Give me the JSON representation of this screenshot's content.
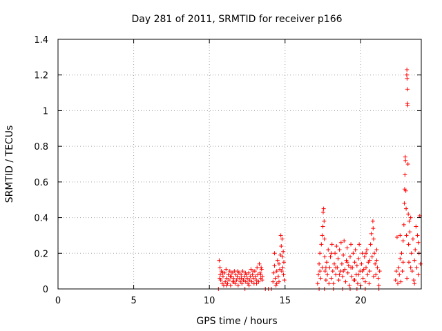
{
  "chart_data": {
    "type": "scatter",
    "title": "Day 281 of 2011, SRMTID for receiver p166",
    "xlabel": "GPS time / hours",
    "ylabel": "SRMTID / TECUs",
    "xlim": [
      0,
      24
    ],
    "ylim": [
      0,
      1.4
    ],
    "xticks": [
      0,
      5,
      10,
      15,
      20
    ],
    "xtick_labels": [
      "0",
      "5",
      "10",
      "15",
      "20"
    ],
    "yticks": [
      0,
      0.2,
      0.4,
      0.6,
      0.8,
      1,
      1.2,
      1.4
    ],
    "ytick_labels": [
      "0",
      "0.2",
      "0.4",
      "0.6",
      "0.8",
      "1",
      "1.2",
      "1.4"
    ],
    "grid": true,
    "marker": "+",
    "marker_color": "#ff0000",
    "series": [
      {
        "name": "SRMTID",
        "points": [
          [
            10.6,
            0.0
          ],
          [
            10.65,
            0.16
          ],
          [
            10.7,
            0.12
          ],
          [
            10.72,
            0.08
          ],
          [
            10.75,
            0.05
          ],
          [
            10.8,
            0.1
          ],
          [
            10.85,
            0.03
          ],
          [
            10.9,
            0.07
          ],
          [
            10.95,
            0.02
          ],
          [
            11.0,
            0.09
          ],
          [
            11.05,
            0.04
          ],
          [
            11.1,
            0.11
          ],
          [
            11.15,
            0.06
          ],
          [
            11.2,
            0.03
          ],
          [
            11.25,
            0.08
          ],
          [
            11.3,
            0.05
          ],
          [
            11.35,
            0.1
          ],
          [
            11.4,
            0.02
          ],
          [
            11.45,
            0.07
          ],
          [
            11.5,
            0.09
          ],
          [
            11.55,
            0.04
          ],
          [
            11.6,
            0.06
          ],
          [
            11.65,
            0.1
          ],
          [
            11.7,
            0.03
          ],
          [
            11.75,
            0.08
          ],
          [
            11.8,
            0.05
          ],
          [
            11.85,
            0.07
          ],
          [
            11.9,
            0.02
          ],
          [
            11.95,
            0.09
          ],
          [
            12.0,
            0.06
          ],
          [
            12.05,
            0.04
          ],
          [
            12.1,
            0.08
          ],
          [
            12.15,
            0.03
          ],
          [
            12.2,
            0.1
          ],
          [
            12.25,
            0.05
          ],
          [
            12.3,
            0.07
          ],
          [
            12.35,
            0.0
          ],
          [
            12.4,
            0.04
          ],
          [
            12.45,
            0.08
          ],
          [
            12.5,
            0.06
          ],
          [
            12.55,
            0.03
          ],
          [
            12.6,
            0.09
          ],
          [
            12.65,
            0.05
          ],
          [
            12.7,
            0.07
          ],
          [
            12.75,
            0.11
          ],
          [
            12.8,
            0.04
          ],
          [
            12.85,
            0.08
          ],
          [
            12.9,
            0.06
          ],
          [
            12.95,
            0.03
          ],
          [
            13.0,
            0.1
          ],
          [
            13.05,
            0.07
          ],
          [
            13.1,
            0.05
          ],
          [
            13.15,
            0.12
          ],
          [
            13.2,
            0.08
          ],
          [
            13.25,
            0.04
          ],
          [
            13.3,
            0.14
          ],
          [
            13.35,
            0.09
          ],
          [
            13.4,
            0.06
          ],
          [
            13.45,
            0.11
          ],
          [
            13.5,
            0.07
          ],
          [
            10.68,
            0.06
          ],
          [
            10.88,
            0.09
          ],
          [
            11.12,
            0.02
          ],
          [
            11.38,
            0.07
          ],
          [
            11.62,
            0.04
          ],
          [
            11.88,
            0.1
          ],
          [
            12.12,
            0.06
          ],
          [
            12.38,
            0.09
          ],
          [
            12.62,
            0.02
          ],
          [
            12.88,
            0.1
          ],
          [
            13.12,
            0.03
          ],
          [
            13.38,
            0.08
          ],
          [
            13.42,
            0.12
          ],
          [
            13.48,
            0.05
          ],
          [
            13.7,
            0.0
          ],
          [
            13.9,
            0.0
          ],
          [
            14.1,
            0.0
          ],
          [
            14.2,
            0.04
          ],
          [
            14.25,
            0.09
          ],
          [
            14.3,
            0.13
          ],
          [
            14.35,
            0.06
          ],
          [
            14.4,
            0.02
          ],
          [
            14.45,
            0.1
          ],
          [
            14.5,
            0.16
          ],
          [
            14.55,
            0.07
          ],
          [
            14.6,
            0.04
          ],
          [
            14.65,
            0.11
          ],
          [
            14.7,
            0.19
          ],
          [
            14.72,
            0.3
          ],
          [
            14.75,
            0.24
          ],
          [
            14.8,
            0.28
          ],
          [
            14.82,
            0.18
          ],
          [
            14.85,
            0.12
          ],
          [
            14.88,
            0.21
          ],
          [
            14.9,
            0.08
          ],
          [
            14.92,
            0.15
          ],
          [
            14.95,
            0.05
          ],
          [
            14.3,
            0.2
          ],
          [
            14.45,
            0.03
          ],
          [
            14.6,
            0.14
          ],
          [
            14.78,
            0.1
          ],
          [
            17.15,
            0.03
          ],
          [
            17.2,
            0.08
          ],
          [
            17.25,
            0.14
          ],
          [
            17.3,
            0.2
          ],
          [
            17.35,
            0.06
          ],
          [
            17.4,
            0.25
          ],
          [
            17.45,
            0.12
          ],
          [
            17.5,
            0.35
          ],
          [
            17.52,
            0.43
          ],
          [
            17.55,
            0.45
          ],
          [
            17.58,
            0.38
          ],
          [
            17.6,
            0.28
          ],
          [
            17.62,
            0.18
          ],
          [
            17.65,
            0.1
          ],
          [
            17.7,
            0.05
          ],
          [
            17.75,
            0.15
          ],
          [
            17.8,
            0.08
          ],
          [
            17.85,
            0.22
          ],
          [
            17.9,
            0.03
          ],
          [
            17.95,
            0.12
          ],
          [
            18.0,
            0.18
          ],
          [
            18.05,
            0.06
          ],
          [
            18.1,
            0.25
          ],
          [
            18.15,
            0.1
          ],
          [
            18.2,
            0.03
          ],
          [
            18.25,
            0.14
          ],
          [
            18.3,
            0.2
          ],
          [
            18.35,
            0.08
          ],
          [
            18.4,
            0.24
          ],
          [
            18.45,
            0.12
          ],
          [
            18.5,
            0.17
          ],
          [
            18.55,
            0.05
          ],
          [
            18.6,
            0.22
          ],
          [
            18.65,
            0.1
          ],
          [
            18.7,
            0.26
          ],
          [
            18.75,
            0.14
          ],
          [
            18.8,
            0.07
          ],
          [
            18.85,
            0.19
          ],
          [
            18.9,
            0.27
          ],
          [
            18.95,
            0.11
          ],
          [
            19.0,
            0.04
          ],
          [
            19.05,
            0.16
          ],
          [
            19.1,
            0.23
          ],
          [
            19.15,
            0.09
          ],
          [
            19.2,
            0.13
          ],
          [
            19.25,
            0.02
          ],
          [
            19.3,
            0.18
          ],
          [
            19.35,
            0.25
          ],
          [
            19.4,
            0.07
          ],
          [
            19.45,
            0.12
          ],
          [
            19.5,
            0.2
          ],
          [
            19.55,
            0.05
          ],
          [
            19.6,
            0.15
          ],
          [
            19.65,
            0.22
          ],
          [
            19.7,
            0.08
          ],
          [
            19.75,
            0.13
          ],
          [
            19.8,
            0.03
          ],
          [
            19.85,
            0.17
          ],
          [
            19.9,
            0.25
          ],
          [
            19.95,
            0.1
          ],
          [
            20.0,
            0.02
          ],
          [
            20.05,
            0.14
          ],
          [
            20.1,
            0.2
          ],
          [
            20.15,
            0.06
          ],
          [
            20.2,
            0.11
          ],
          [
            20.25,
            0.18
          ],
          [
            20.3,
            0.04
          ],
          [
            20.35,
            0.12
          ],
          [
            20.4,
            0.22
          ],
          [
            20.45,
            0.08
          ],
          [
            20.5,
            0.15
          ],
          [
            20.55,
            0.03
          ],
          [
            20.6,
            0.1
          ],
          [
            20.65,
            0.25
          ],
          [
            20.7,
            0.31
          ],
          [
            20.75,
            0.18
          ],
          [
            20.8,
            0.38
          ],
          [
            20.82,
            0.34
          ],
          [
            20.85,
            0.28
          ],
          [
            20.9,
            0.2
          ],
          [
            20.95,
            0.14
          ],
          [
            21.0,
            0.08
          ],
          [
            21.05,
            0.22
          ],
          [
            21.1,
            0.12
          ],
          [
            21.15,
            0.06
          ],
          [
            21.2,
            0.02
          ],
          [
            21.25,
            0.1
          ],
          [
            17.25,
            0.0
          ],
          [
            17.6,
            0.0
          ],
          [
            18.2,
            0.0
          ],
          [
            18.8,
            0.0
          ],
          [
            19.3,
            0.0
          ],
          [
            19.75,
            0.0
          ],
          [
            20.3,
            0.0
          ],
          [
            21.2,
            0.0
          ],
          [
            17.3,
            0.1
          ],
          [
            17.45,
            0.3
          ],
          [
            17.7,
            0.12
          ],
          [
            18.05,
            0.2
          ],
          [
            18.35,
            0.12
          ],
          [
            18.6,
            0.08
          ],
          [
            18.85,
            0.1
          ],
          [
            19.1,
            0.15
          ],
          [
            19.35,
            0.12
          ],
          [
            19.6,
            0.05
          ],
          [
            19.85,
            0.08
          ],
          [
            20.1,
            0.1
          ],
          [
            20.35,
            0.2
          ],
          [
            20.6,
            0.16
          ],
          [
            20.85,
            0.07
          ],
          [
            21.05,
            0.16
          ],
          [
            22.3,
            0.05
          ],
          [
            22.35,
            0.1
          ],
          [
            22.4,
            0.29
          ],
          [
            22.45,
            0.03
          ],
          [
            22.5,
            0.12
          ],
          [
            22.55,
            0.08
          ],
          [
            22.6,
            0.17
          ],
          [
            22.65,
            0.04
          ],
          [
            22.7,
            0.2
          ],
          [
            22.75,
            0.1
          ],
          [
            22.8,
            0.27
          ],
          [
            22.85,
            0.36
          ],
          [
            22.88,
            0.48
          ],
          [
            22.9,
            0.56
          ],
          [
            22.92,
            0.64
          ],
          [
            22.94,
            0.74
          ],
          [
            22.96,
            0.72
          ],
          [
            22.98,
            0.55
          ],
          [
            23.0,
            0.45
          ],
          [
            23.02,
            0.3
          ],
          [
            23.04,
            1.2
          ],
          [
            23.05,
            1.23
          ],
          [
            23.06,
            1.18
          ],
          [
            23.08,
            1.04
          ],
          [
            23.09,
            1.12
          ],
          [
            23.1,
            1.03
          ],
          [
            23.12,
            0.7
          ],
          [
            23.14,
            0.42
          ],
          [
            23.16,
            0.25
          ],
          [
            23.18,
            0.15
          ],
          [
            23.2,
            0.38
          ],
          [
            23.25,
            0.32
          ],
          [
            23.3,
            0.4
          ],
          [
            23.35,
            0.2
          ],
          [
            23.4,
            0.1
          ],
          [
            23.45,
            0.28
          ],
          [
            23.5,
            0.05
          ],
          [
            23.55,
            0.16
          ],
          [
            23.6,
            0.22
          ],
          [
            23.65,
            0.35
          ],
          [
            23.7,
            0.12
          ],
          [
            23.75,
            0.3
          ],
          [
            23.8,
            0.08
          ],
          [
            23.85,
            0.2
          ],
          [
            23.9,
            0.41
          ],
          [
            23.95,
            0.14
          ],
          [
            22.6,
            0.3
          ],
          [
            22.8,
            0.15
          ],
          [
            23.05,
            0.06
          ],
          [
            23.3,
            0.12
          ],
          [
            23.55,
            0.03
          ],
          [
            23.8,
            0.26
          ]
        ]
      }
    ]
  }
}
